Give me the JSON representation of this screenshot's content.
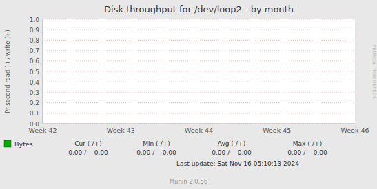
{
  "chart_data": {
    "type": "line",
    "title": "Disk throughput for /dev/loop2 - by month",
    "y_label": "Pr second read (-) / write (+)",
    "categories": [
      "Week 42",
      "Week 43",
      "Week 44",
      "Week 45",
      "Week 46"
    ],
    "series": [
      {
        "name": "Bytes",
        "color": "#00aa00",
        "values": [
          null,
          null,
          null,
          null,
          null
        ]
      }
    ],
    "ylim": [
      0.0,
      1.0
    ],
    "yticks": [
      {
        "value": 0.0,
        "label": "0.0"
      },
      0.1,
      0.2,
      0.3,
      0.4,
      0.5,
      0.6,
      0.7,
      0.8,
      0.9,
      {
        "value": 1.0,
        "label": "1.0"
      }
    ],
    "grid": true,
    "legend": "bottom",
    "annotations": [
      "RRDTOOL / TOBI OETIKER",
      "Cur (-/+)",
      "Min (-/+)",
      "Avg (-/+)",
      "Max (-/+)",
      "0.00 /    0.00",
      "0.00 /    0.00",
      "0.00 /    0.00",
      "0.00 /    0.00",
      "Last update: Sat Nov 16 05:10:13 2024",
      "Munin 2.0.56"
    ]
  }
}
